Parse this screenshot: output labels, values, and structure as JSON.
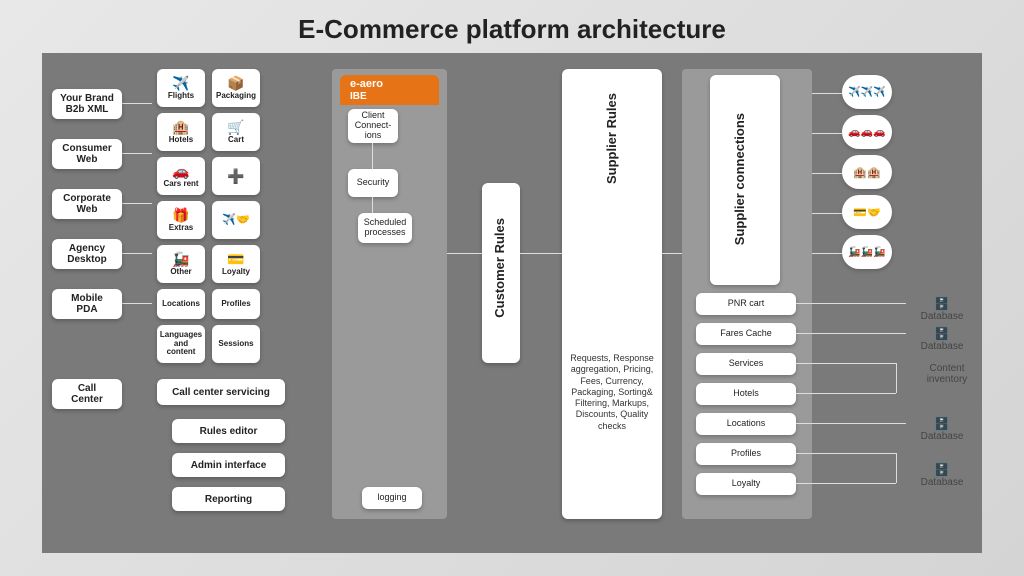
{
  "title": "E-Commerce platform architecture",
  "colors": {
    "page_bg_from": "#e8e8e8",
    "page_bg_to": "#d4d4d4",
    "canvas_bg": "#7a7a7a",
    "box_bg": "#ffffff",
    "eaero_bg": "#e67316",
    "greypanel_bg": "#9a9a9a",
    "line": "#dddddd"
  },
  "channels": [
    {
      "label": "Your Brand\nB2b XML"
    },
    {
      "label": "Consumer\nWeb"
    },
    {
      "label": "Corporate\nWeb"
    },
    {
      "label": "Agency\nDesktop"
    },
    {
      "label": "Mobile\nPDA"
    },
    {
      "label": "Call\nCenter"
    }
  ],
  "catalog_left": [
    {
      "icon": "✈️",
      "label": "Flights"
    },
    {
      "icon": "🏨",
      "label": "Hotels"
    },
    {
      "icon": "🚗",
      "label": "Cars rent"
    },
    {
      "icon": "🎁",
      "label": "Extras"
    },
    {
      "icon": "🚂",
      "label": "Other"
    },
    {
      "icon": "📍",
      "label": "Locations"
    },
    {
      "icon": "🌐",
      "label": "Languages and content"
    }
  ],
  "catalog_right": [
    {
      "icon": "📦",
      "label": "Packaging"
    },
    {
      "icon": "🛒",
      "label": "Cart"
    },
    {
      "icon": "➕",
      "label": ""
    },
    {
      "icon": "✈️🤝",
      "label": ""
    },
    {
      "icon": "💳",
      "label": "Loyalty"
    },
    {
      "icon": "👤",
      "label": "Profiles"
    },
    {
      "icon": "🔑",
      "label": "Sessions"
    }
  ],
  "admin_rows": [
    "Call center servicing",
    "Rules editor",
    "Admin interface",
    "Reporting"
  ],
  "eaero": {
    "title": "e-aero",
    "sub": "IBE"
  },
  "ibe_stack": [
    "Client Connect-ions",
    "Security",
    "Scheduled processes"
  ],
  "logging": "logging",
  "customer_rules": "Customer Rules",
  "supplier_rules": "Supplier Rules",
  "supplier_conn": "Supplier connections",
  "services_text": "Requests, Response aggregation, Pricing, Fees, Currency, Packaging, Sorting& Filtering, Markups, Discounts, Quality checks",
  "supplier_items": [
    "PNR cart",
    "Fares Cache",
    "Services",
    "Hotels",
    "Locations",
    "Profiles",
    "Loyalty"
  ],
  "supplier_icons": [
    "✈️✈️✈️",
    "🚗🚗🚗",
    "🏨🏨",
    "💳🤝",
    "🚂🚂🚂"
  ],
  "db_labels": [
    "Database",
    "Database",
    "Content inventory",
    "Database",
    "Database"
  ]
}
